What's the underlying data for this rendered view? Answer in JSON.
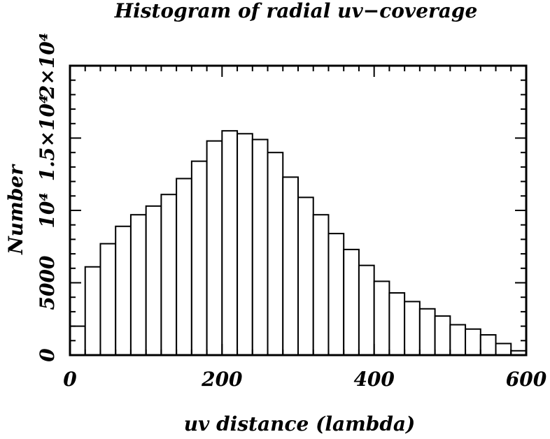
{
  "chart_data": {
    "type": "bar",
    "title": "Histogram of radial uv−coverage",
    "xlabel": "uv distance (lambda)",
    "ylabel": "Number",
    "xlim": [
      0,
      600
    ],
    "ylim": [
      0,
      20000
    ],
    "bin_width": 20,
    "bin_edges_start": [
      0,
      20,
      40,
      60,
      80,
      100,
      120,
      140,
      160,
      180,
      200,
      220,
      240,
      260,
      280,
      300,
      320,
      340,
      360,
      380,
      400,
      420,
      440,
      460,
      480,
      500,
      520,
      540,
      560,
      580
    ],
    "values": [
      2000,
      6100,
      7700,
      8900,
      9700,
      10300,
      11100,
      12200,
      13400,
      14800,
      15500,
      15300,
      14900,
      14000,
      12300,
      10900,
      9700,
      8400,
      7300,
      6200,
      5100,
      4300,
      3700,
      3200,
      2700,
      2100,
      1800,
      1400,
      800,
      300
    ],
    "x_ticks": [
      {
        "value": 0,
        "label": "0"
      },
      {
        "value": 200,
        "label": "200"
      },
      {
        "value": 400,
        "label": "400"
      },
      {
        "value": 600,
        "label": "600"
      }
    ],
    "y_ticks": [
      {
        "value": 0,
        "label": "0"
      },
      {
        "value": 5000,
        "label": "5000"
      },
      {
        "value": 10000,
        "label": "10⁴"
      },
      {
        "value": 15000,
        "label": "1.5×10⁴"
      },
      {
        "value": 20000,
        "label": "2×10⁴"
      }
    ],
    "grid": false,
    "bar_fill": "#ffffff",
    "bar_stroke": "#000000"
  }
}
